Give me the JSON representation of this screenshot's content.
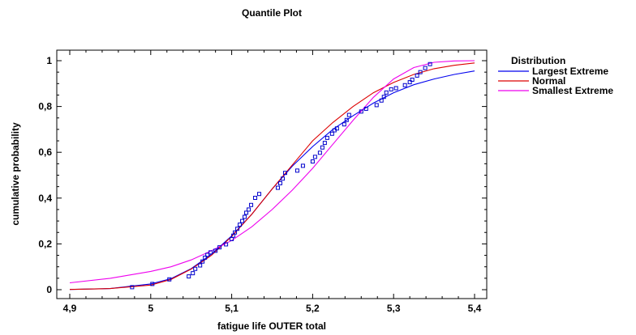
{
  "chart_data": {
    "type": "scatter",
    "title": "Quantile Plot",
    "xlabel": "fatigue life OUTER total",
    "ylabel": "cumulative probability",
    "xlim": [
      4.9,
      5.4
    ],
    "ylim": [
      0,
      1
    ],
    "x_ticks": [
      4.9,
      5.0,
      5.1,
      5.2,
      5.3,
      5.4
    ],
    "x_tick_labels": [
      "4,9",
      "5",
      "5,1",
      "5,2",
      "5,3",
      "5,4"
    ],
    "y_ticks": [
      0,
      0.2,
      0.4,
      0.6,
      0.8,
      1.0
    ],
    "y_tick_labels": [
      "0",
      "0,2",
      "0,4",
      "0,6",
      "0,8",
      "1"
    ],
    "legend": {
      "title": "Distribution",
      "position": "right",
      "entries": [
        "Largest Extreme",
        "Normal",
        "Smallest Extreme"
      ]
    },
    "grid": false,
    "observed_points": {
      "color": "#0000cc",
      "marker": "open-square",
      "x": [
        4.977,
        5.002,
        5.023,
        5.047,
        5.052,
        5.055,
        5.061,
        5.064,
        5.067,
        5.07,
        5.074,
        5.08,
        5.085,
        5.093,
        5.1,
        5.102,
        5.104,
        5.107,
        5.11,
        5.113,
        5.116,
        5.118,
        5.121,
        5.124,
        5.129,
        5.134,
        5.157,
        5.16,
        5.163,
        5.166,
        5.181,
        5.188,
        5.2,
        5.203,
        5.209,
        5.212,
        5.215,
        5.218,
        5.224,
        5.227,
        5.23,
        5.239,
        5.242,
        5.245,
        5.26,
        5.266,
        5.279,
        5.285,
        5.288,
        5.291,
        5.297,
        5.303,
        5.314,
        5.32,
        5.323,
        5.329,
        5.333,
        5.339,
        5.345
      ],
      "y": [
        0.011,
        0.025,
        0.045,
        0.058,
        0.072,
        0.091,
        0.106,
        0.123,
        0.14,
        0.152,
        0.163,
        0.17,
        0.185,
        0.198,
        0.221,
        0.236,
        0.25,
        0.266,
        0.284,
        0.3,
        0.318,
        0.336,
        0.35,
        0.37,
        0.401,
        0.418,
        0.445,
        0.465,
        0.485,
        0.51,
        0.52,
        0.541,
        0.56,
        0.58,
        0.598,
        0.621,
        0.641,
        0.663,
        0.681,
        0.696,
        0.704,
        0.722,
        0.741,
        0.763,
        0.778,
        0.79,
        0.806,
        0.826,
        0.842,
        0.861,
        0.875,
        0.88,
        0.893,
        0.906,
        0.917,
        0.935,
        0.95,
        0.968,
        0.985
      ]
    },
    "series": [
      {
        "name": "Largest Extreme",
        "color": "#0000ee",
        "x": [
          4.9,
          4.95,
          5.0,
          5.025,
          5.05,
          5.075,
          5.1,
          5.125,
          5.15,
          5.175,
          5.2,
          5.225,
          5.25,
          5.275,
          5.3,
          5.325,
          5.35,
          5.375,
          5.4
        ],
        "y": [
          0.001,
          0.005,
          0.025,
          0.048,
          0.092,
          0.155,
          0.235,
          0.33,
          0.44,
          0.54,
          0.625,
          0.7,
          0.76,
          0.815,
          0.86,
          0.895,
          0.92,
          0.94,
          0.955
        ]
      },
      {
        "name": "Normal",
        "color": "#dd0000",
        "x": [
          4.9,
          4.95,
          5.0,
          5.025,
          5.05,
          5.075,
          5.1,
          5.125,
          5.15,
          5.175,
          5.2,
          5.225,
          5.25,
          5.275,
          5.3,
          5.325,
          5.35,
          5.375,
          5.4
        ],
        "y": [
          0.001,
          0.005,
          0.02,
          0.045,
          0.09,
          0.15,
          0.232,
          0.33,
          0.44,
          0.545,
          0.65,
          0.73,
          0.8,
          0.86,
          0.905,
          0.94,
          0.965,
          0.98,
          0.99
        ]
      },
      {
        "name": "Smallest Extreme",
        "color": "#ee00ee",
        "x": [
          4.9,
          4.95,
          5.0,
          5.025,
          5.05,
          5.075,
          5.1,
          5.125,
          5.15,
          5.175,
          5.2,
          5.225,
          5.25,
          5.275,
          5.3,
          5.325,
          5.35,
          5.375,
          5.4
        ],
        "y": [
          0.03,
          0.05,
          0.08,
          0.1,
          0.13,
          0.17,
          0.215,
          0.275,
          0.35,
          0.435,
          0.53,
          0.635,
          0.74,
          0.84,
          0.92,
          0.97,
          0.993,
          0.999,
          1.0
        ]
      }
    ]
  }
}
